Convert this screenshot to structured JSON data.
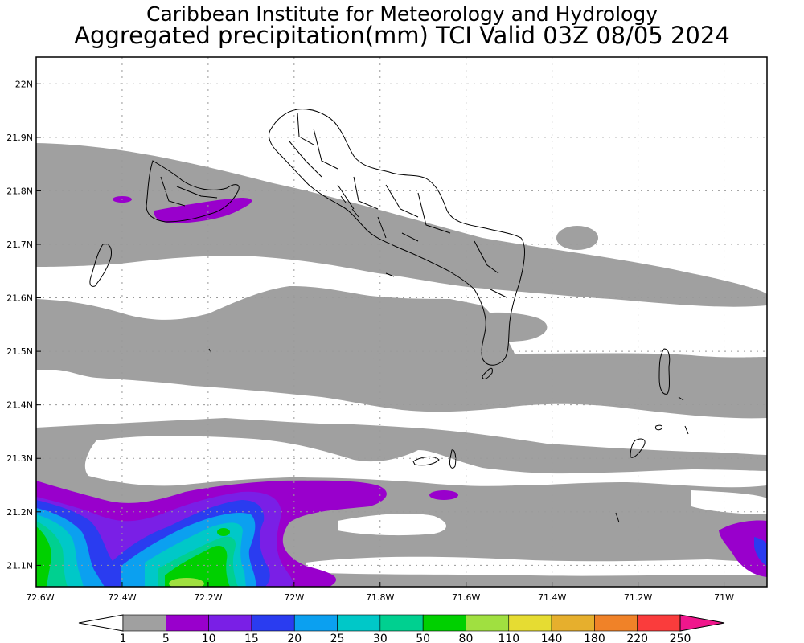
{
  "header": {
    "line1": "Caribbean Institute for Meteorology and Hydrology",
    "line2": "Aggregated precipitation(mm) TCI Valid 03Z 08/05 2024"
  },
  "map": {
    "lon_range": [
      -72.6,
      -70.9
    ],
    "lat_range": [
      21.06,
      22.05
    ],
    "x_ticks": [
      {
        "value": -72.6,
        "label": "72.6W"
      },
      {
        "value": -72.4,
        "label": "72.4W"
      },
      {
        "value": -72.2,
        "label": "72.2W"
      },
      {
        "value": -72.0,
        "label": "72W"
      },
      {
        "value": -71.8,
        "label": "71.8W"
      },
      {
        "value": -71.6,
        "label": "71.6W"
      },
      {
        "value": -71.4,
        "label": "71.4W"
      },
      {
        "value": -71.2,
        "label": "71.2W"
      },
      {
        "value": -71.0,
        "label": "71W"
      }
    ],
    "y_ticks": [
      {
        "value": 22.0,
        "label": "22N"
      },
      {
        "value": 21.9,
        "label": "21.9N"
      },
      {
        "value": 21.8,
        "label": "21.8N"
      },
      {
        "value": 21.7,
        "label": "21.7N"
      },
      {
        "value": 21.6,
        "label": "21.6N"
      },
      {
        "value": 21.5,
        "label": "21.5N"
      },
      {
        "value": 21.4,
        "label": "21.4N"
      },
      {
        "value": 21.3,
        "label": "21.3N"
      },
      {
        "value": 21.2,
        "label": "21.2N"
      },
      {
        "value": 21.1,
        "label": "21.1N"
      }
    ],
    "grid": "dotted"
  },
  "colorbar": {
    "unit": "mm",
    "levels": [
      "1",
      "5",
      "10",
      "15",
      "20",
      "25",
      "30",
      "50",
      "80",
      "110",
      "140",
      "180",
      "220",
      "250"
    ],
    "colors": [
      "#a0a0a0",
      "#9900cc",
      "#7a1fe6",
      "#2a3cf0",
      "#0ba0f0",
      "#00c8c8",
      "#00d090",
      "#00d000",
      "#a0e040",
      "#e6dc32",
      "#e6af2d",
      "#f08228",
      "#fa3c3c",
      "#f0168c"
    ],
    "under_color": "#ffffff",
    "over_color": "#f0168c"
  }
}
